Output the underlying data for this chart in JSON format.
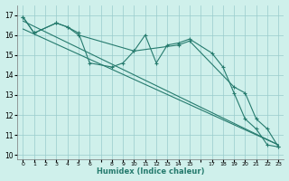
{
  "xlabel": "Humidex (Indice chaleur)",
  "ylabel": "",
  "bg_color": "#cff0eb",
  "grid_color": "#99cccc",
  "line_color": "#267b6e",
  "xlim": [
    -0.5,
    23.5
  ],
  "ylim": [
    9.8,
    17.5
  ],
  "yticks": [
    10,
    11,
    12,
    13,
    14,
    15,
    16,
    17
  ],
  "xtick_labels": [
    "0",
    "1",
    "2",
    "3",
    "4",
    "5",
    "6",
    "",
    "8",
    "9",
    "10",
    "11",
    "12",
    "13",
    "14",
    "15",
    "",
    "17",
    "18",
    "19",
    "20",
    "21",
    "22",
    "23"
  ],
  "series": [
    {
      "x": [
        0,
        1,
        3,
        4,
        5,
        6,
        8,
        9,
        10,
        11,
        12,
        13,
        14,
        15,
        17,
        18,
        19,
        20,
        21,
        22,
        23
      ],
      "y": [
        16.9,
        16.1,
        16.6,
        16.4,
        16.1,
        14.6,
        14.4,
        14.6,
        15.2,
        16.0,
        14.6,
        15.5,
        15.6,
        15.8,
        15.1,
        14.4,
        13.1,
        11.8,
        11.3,
        10.5,
        10.4
      ]
    },
    {
      "x": [
        0,
        1,
        3,
        4,
        5,
        10,
        14,
        15,
        19,
        20,
        21,
        22,
        23
      ],
      "y": [
        16.9,
        16.1,
        16.6,
        16.4,
        16.0,
        15.2,
        15.5,
        15.7,
        13.4,
        13.1,
        11.8,
        11.3,
        10.4
      ]
    },
    {
      "x": [
        0,
        23
      ],
      "y": [
        16.7,
        10.5
      ]
    },
    {
      "x": [
        0,
        23
      ],
      "y": [
        16.3,
        10.5
      ]
    }
  ]
}
